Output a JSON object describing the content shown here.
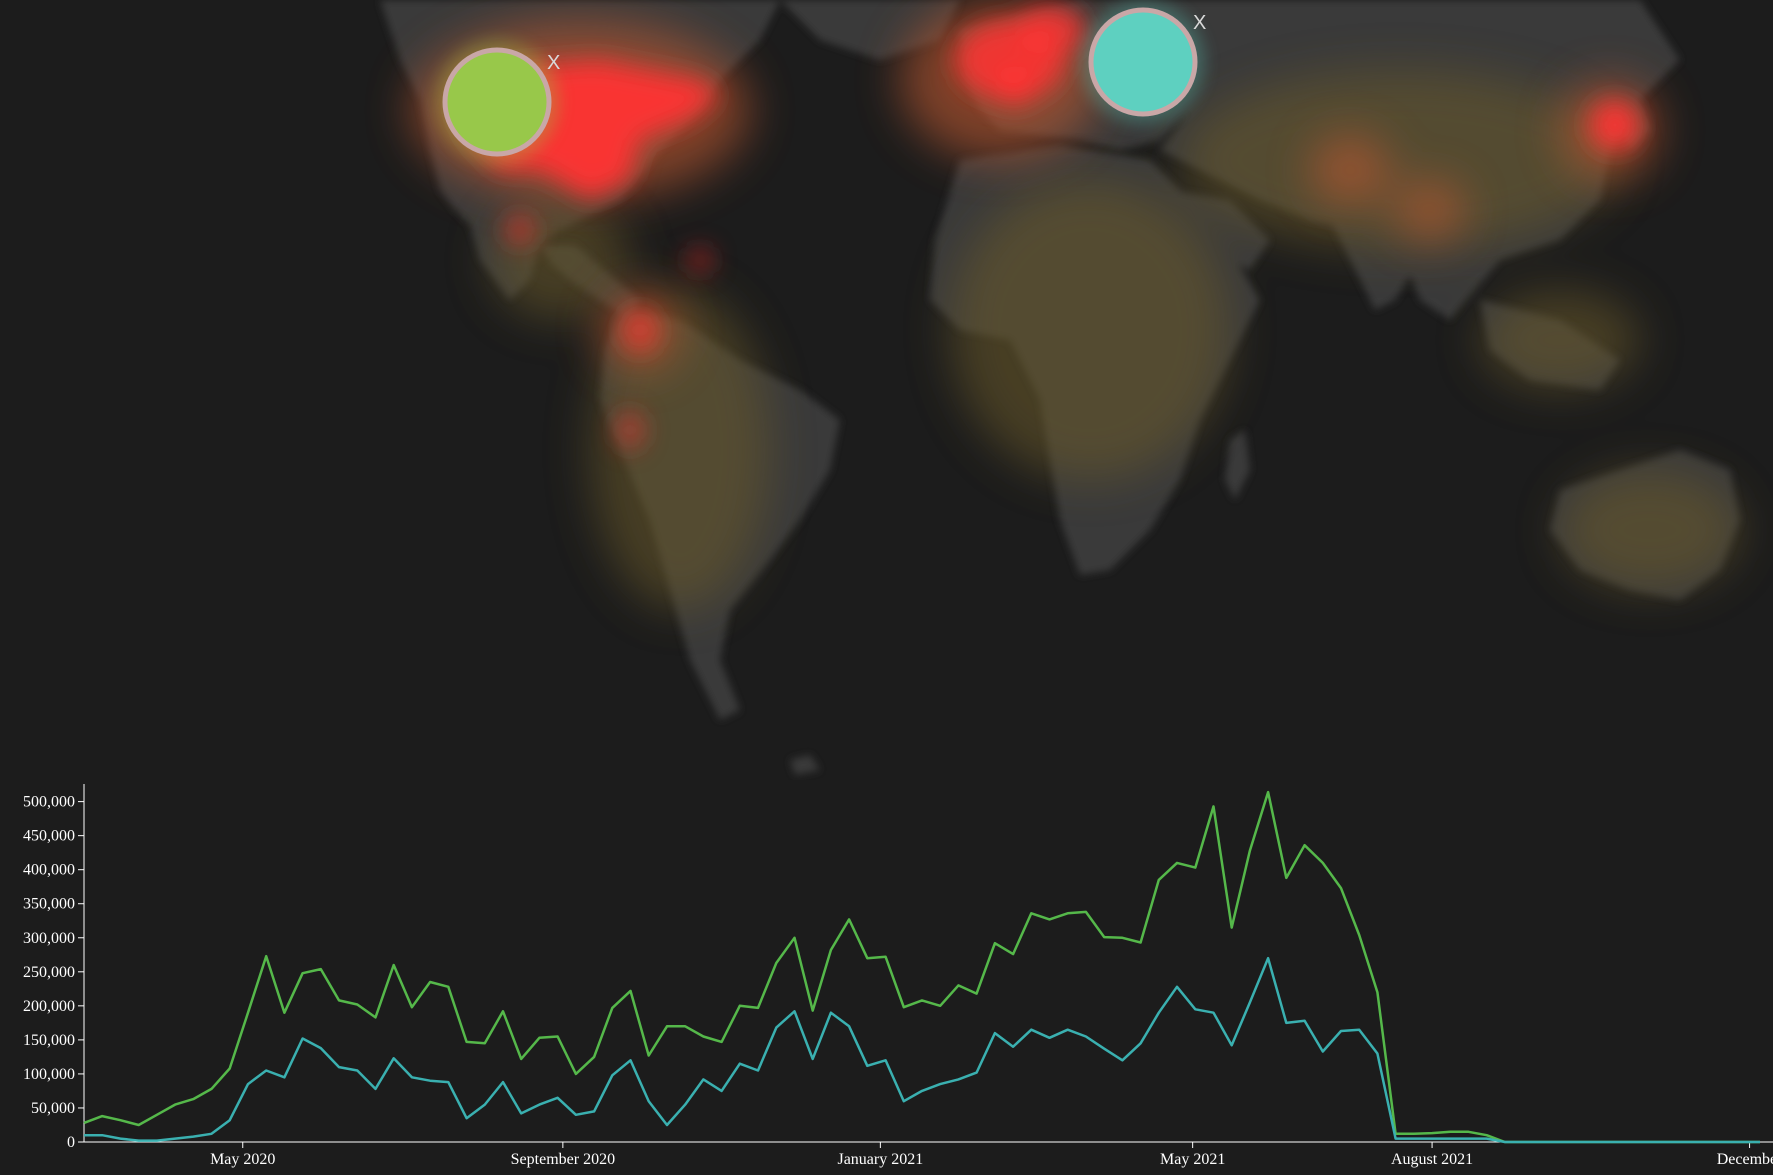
{
  "map": {
    "markers": [
      {
        "name": "marker-north-america",
        "color": "#98c84a",
        "close_label": "X"
      },
      {
        "name": "marker-europe",
        "color": "#5ed0c0",
        "close_label": "X"
      }
    ],
    "heat_color": "#ff3333",
    "land_color": "#454545",
    "ocean_color": "#1c1c1c"
  },
  "chart_data": {
    "type": "line",
    "x_start": "2020-03-01",
    "x_step_days": 7,
    "xlim": [
      "2020-03-01",
      "2021-12-10"
    ],
    "ylim": [
      0,
      520000
    ],
    "y_ticks": [
      "0",
      "50,000",
      "100,000",
      "150,000",
      "200,000",
      "250,000",
      "300,000",
      "350,000",
      "400,000",
      "450,000",
      "500,000"
    ],
    "x_ticks": [
      {
        "label": "May 2020",
        "date": "2020-05-01"
      },
      {
        "label": "September 2020",
        "date": "2020-09-01"
      },
      {
        "label": "January 2021",
        "date": "2021-01-01"
      },
      {
        "label": "May 2021",
        "date": "2021-05-01"
      },
      {
        "label": "August 2021",
        "date": "2021-08-01"
      },
      {
        "label": "December",
        "date": "2021-12-01"
      }
    ],
    "grid": false,
    "series": [
      {
        "color": "#55b84a",
        "values": [
          28000,
          38000,
          32000,
          25000,
          40000,
          55000,
          63000,
          78000,
          108000,
          190000,
          273000,
          190000,
          248000,
          254000,
          208000,
          202000,
          183000,
          260000,
          198000,
          235000,
          228000,
          147000,
          145000,
          192000,
          122000,
          153000,
          155000,
          100000,
          125000,
          197000,
          222000,
          127000,
          170000,
          170000,
          155000,
          147000,
          200000,
          197000,
          263000,
          300000,
          193000,
          282000,
          327000,
          270000,
          272000,
          198000,
          208000,
          200000,
          230000,
          218000,
          292000,
          276000,
          336000,
          327000,
          336000,
          338000,
          301000,
          300000,
          293000,
          385000,
          410000,
          403000,
          493000,
          315000,
          428000,
          514000,
          388000,
          436000,
          410000,
          373000,
          304000,
          220000,
          12000,
          12000,
          13000,
          15000,
          15000,
          10000,
          0,
          0,
          0,
          0,
          0,
          0,
          0,
          0,
          0,
          0,
          0,
          0,
          0,
          0,
          0,
          0,
          0,
          0,
          0,
          0,
          0,
          0,
          0,
          0
        ]
      },
      {
        "color": "#3ab0b0",
        "values": [
          10000,
          10000,
          5000,
          2000,
          2000,
          5000,
          8000,
          12000,
          32000,
          85000,
          105000,
          95000,
          152000,
          138000,
          110000,
          105000,
          78000,
          123000,
          95000,
          90000,
          88000,
          35000,
          55000,
          88000,
          42000,
          55000,
          65000,
          40000,
          45000,
          98000,
          120000,
          60000,
          25000,
          55000,
          92000,
          75000,
          115000,
          105000,
          168000,
          192000,
          122000,
          190000,
          170000,
          112000,
          120000,
          60000,
          75000,
          85000,
          92000,
          102000,
          160000,
          140000,
          165000,
          153000,
          165000,
          155000,
          137000,
          120000,
          145000,
          190000,
          228000,
          195000,
          190000,
          142000,
          205000,
          270000,
          175000,
          178000,
          133000,
          163000,
          165000,
          130000,
          5000,
          5000,
          5000,
          5000,
          5000,
          5000,
          0,
          0,
          0,
          0,
          0,
          0,
          0,
          0,
          0,
          0,
          0,
          0,
          0,
          0,
          0,
          0,
          0,
          0,
          0,
          0,
          0,
          0,
          0,
          0
        ]
      }
    ]
  }
}
